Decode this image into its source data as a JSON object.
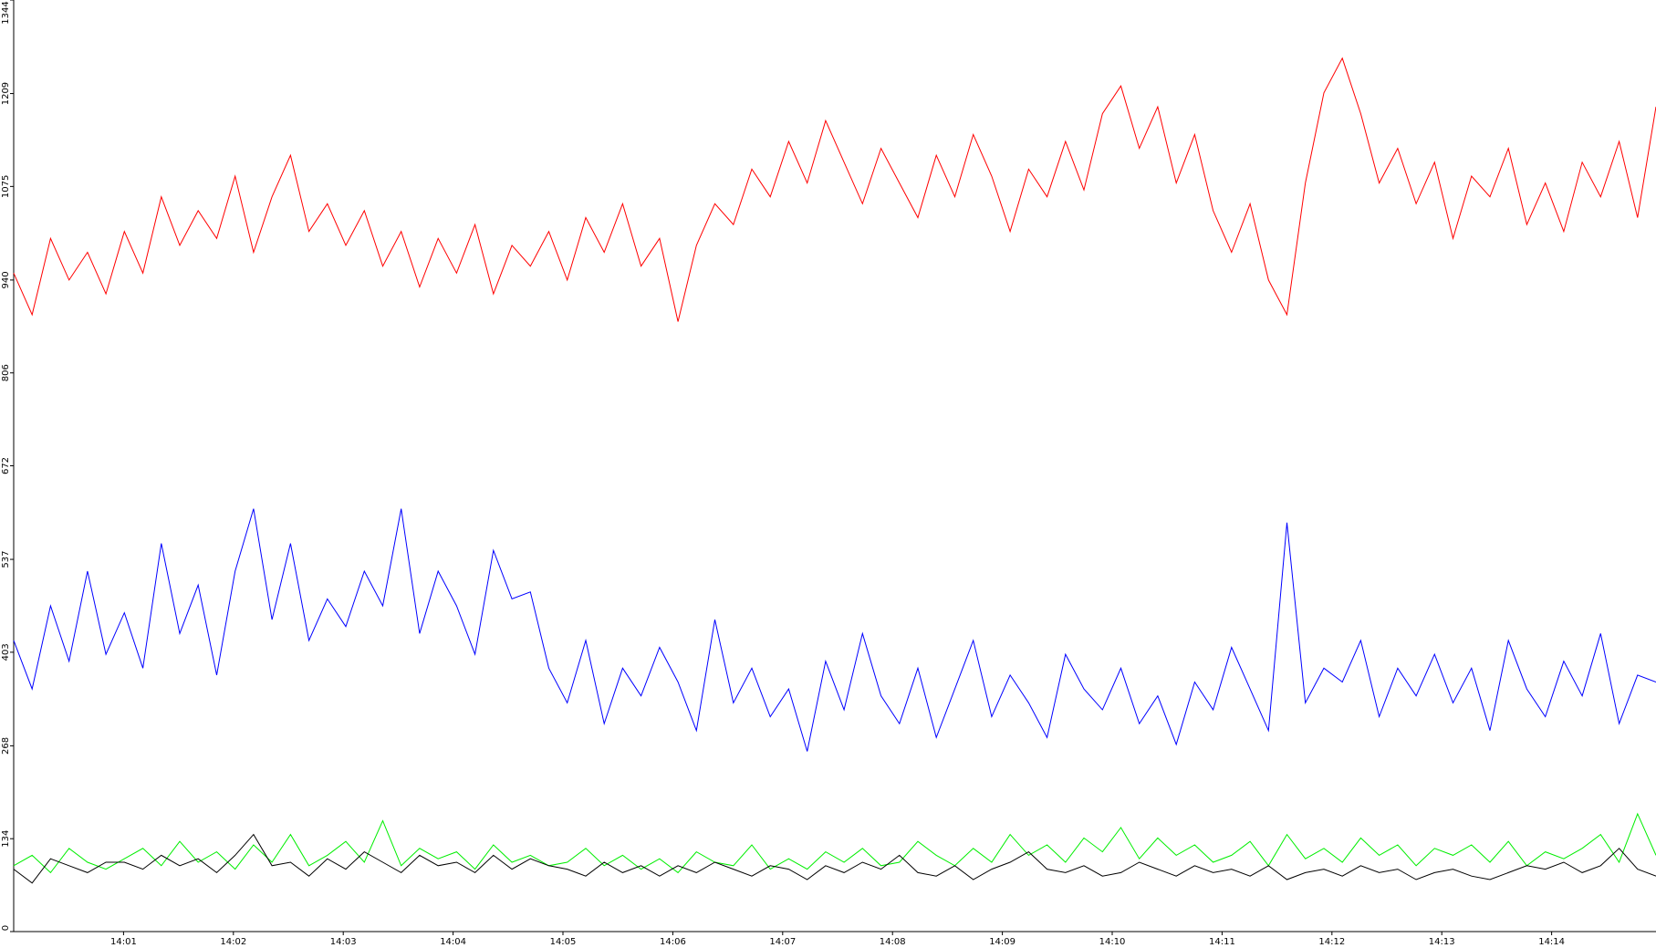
{
  "chart_data": {
    "type": "line",
    "xlim": [
      0,
      14.95
    ],
    "xticks": [
      {
        "value": 1,
        "label": "14:01"
      },
      {
        "value": 2,
        "label": "14:02"
      },
      {
        "value": 3,
        "label": "14:03"
      },
      {
        "value": 4,
        "label": "14:04"
      },
      {
        "value": 5,
        "label": "14:05"
      },
      {
        "value": 6,
        "label": "14:06"
      },
      {
        "value": 7,
        "label": "14:07"
      },
      {
        "value": 8,
        "label": "14:08"
      },
      {
        "value": 9,
        "label": "14:09"
      },
      {
        "value": 10,
        "label": "14:10"
      },
      {
        "value": 11,
        "label": "14:11"
      },
      {
        "value": 12,
        "label": "14:12"
      },
      {
        "value": 13,
        "label": "14:13"
      },
      {
        "value": 14,
        "label": "14:14"
      }
    ],
    "ylim": [
      0,
      1344
    ],
    "yticks": [
      0,
      134,
      268,
      403,
      537,
      672,
      806,
      940,
      1075,
      1209,
      1344
    ],
    "series": [
      {
        "color": "#ff0000",
        "values": [
          950,
          890,
          1000,
          940,
          980,
          920,
          1010,
          950,
          1060,
          990,
          1040,
          1000,
          1090,
          980,
          1060,
          1120,
          1010,
          1050,
          990,
          1040,
          960,
          1010,
          930,
          1000,
          950,
          1020,
          920,
          990,
          960,
          1010,
          940,
          1030,
          980,
          1050,
          960,
          1000,
          880,
          990,
          1050,
          1020,
          1100,
          1060,
          1140,
          1080,
          1170,
          1110,
          1050,
          1130,
          1080,
          1030,
          1120,
          1060,
          1150,
          1090,
          1010,
          1100,
          1060,
          1140,
          1070,
          1180,
          1220,
          1130,
          1190,
          1080,
          1150,
          1040,
          980,
          1050,
          940,
          890,
          1080,
          1210,
          1260,
          1180,
          1080,
          1130,
          1050,
          1110,
          1000,
          1090,
          1060,
          1130,
          1020,
          1080,
          1010,
          1110,
          1060,
          1140,
          1030,
          1190
        ]
      },
      {
        "color": "#0000ff",
        "values": [
          420,
          350,
          470,
          390,
          520,
          400,
          460,
          380,
          560,
          430,
          500,
          370,
          520,
          610,
          450,
          560,
          420,
          480,
          440,
          520,
          470,
          610,
          430,
          520,
          470,
          400,
          550,
          480,
          490,
          380,
          330,
          420,
          300,
          380,
          340,
          410,
          360,
          290,
          450,
          330,
          380,
          310,
          350,
          260,
          390,
          320,
          430,
          340,
          300,
          380,
          280,
          350,
          420,
          310,
          370,
          330,
          280,
          400,
          350,
          320,
          380,
          300,
          340,
          270,
          360,
          320,
          410,
          350,
          290,
          590,
          330,
          380,
          360,
          420,
          310,
          380,
          340,
          400,
          330,
          380,
          290,
          420,
          350,
          310,
          390,
          340,
          430,
          300,
          370,
          360
        ]
      },
      {
        "color": "#00ee00",
        "values": [
          95,
          110,
          85,
          120,
          100,
          90,
          105,
          120,
          95,
          130,
          100,
          115,
          90,
          125,
          100,
          140,
          95,
          110,
          130,
          100,
          160,
          95,
          120,
          105,
          115,
          90,
          125,
          100,
          110,
          95,
          100,
          120,
          95,
          110,
          90,
          105,
          85,
          115,
          100,
          95,
          125,
          90,
          105,
          90,
          115,
          100,
          120,
          95,
          100,
          130,
          110,
          95,
          120,
          100,
          140,
          110,
          125,
          100,
          135,
          115,
          150,
          105,
          135,
          110,
          125,
          100,
          110,
          130,
          95,
          140,
          105,
          120,
          100,
          135,
          110,
          125,
          95,
          120,
          110,
          125,
          100,
          130,
          95,
          115,
          105,
          120,
          140,
          100,
          170,
          110
        ]
      },
      {
        "color": "#000000",
        "values": [
          90,
          70,
          105,
          95,
          85,
          100,
          100,
          90,
          110,
          95,
          105,
          85,
          110,
          140,
          95,
          100,
          80,
          105,
          90,
          115,
          100,
          85,
          110,
          95,
          100,
          85,
          110,
          90,
          105,
          95,
          90,
          80,
          100,
          85,
          95,
          80,
          95,
          85,
          100,
          90,
          80,
          95,
          90,
          75,
          95,
          85,
          100,
          90,
          110,
          85,
          80,
          95,
          75,
          90,
          100,
          115,
          90,
          85,
          95,
          80,
          85,
          100,
          90,
          80,
          95,
          85,
          90,
          80,
          95,
          75,
          85,
          90,
          80,
          95,
          85,
          90,
          75,
          85,
          90,
          80,
          75,
          85,
          95,
          90,
          100,
          85,
          95,
          120,
          90,
          80
        ]
      }
    ]
  }
}
